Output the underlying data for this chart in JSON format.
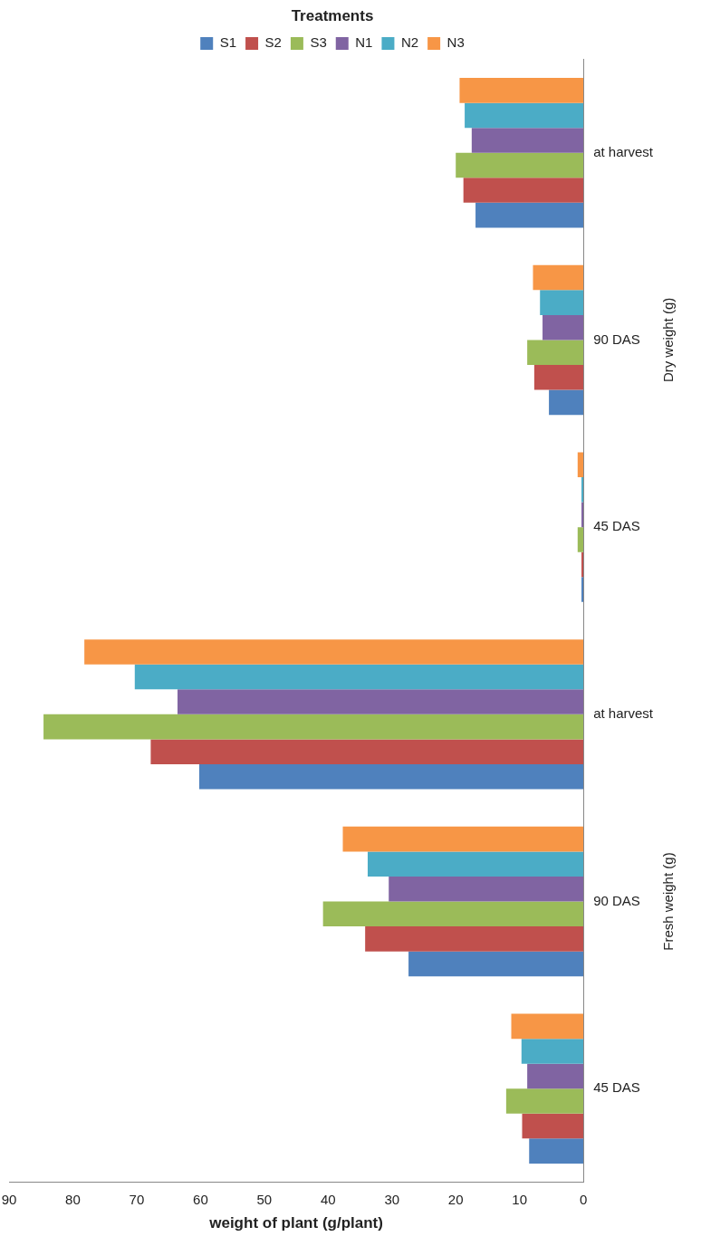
{
  "chart_data": {
    "type": "bar",
    "orientation": "horizontal",
    "xlabel": "weight of plant (g/plant)",
    "legend_title": "Treatments",
    "legend": "top",
    "categories": [
      "at harvest",
      "90 DAS",
      "45 DAS",
      "at harvest",
      "90 DAS",
      "45 DAS"
    ],
    "annotations": [
      "Dry weight (g)",
      "Fresh weight (g)"
    ],
    "xlim": [
      90,
      0
    ],
    "xticks": [
      0,
      10,
      20,
      30,
      40,
      50,
      60,
      70,
      80,
      90
    ],
    "grid": false,
    "series": [
      {
        "name": "S1",
        "color": "#4f81bd",
        "values": [
          16.9,
          5.4,
          0.3,
          60.2,
          27.4,
          8.5
        ]
      },
      {
        "name": "S2",
        "color": "#c0504d",
        "values": [
          18.8,
          7.7,
          0.3,
          67.8,
          34.2,
          9.6
        ]
      },
      {
        "name": "S3",
        "color": "#9bbb59",
        "values": [
          20.0,
          8.8,
          0.9,
          84.6,
          40.8,
          12.1
        ]
      },
      {
        "name": "N1",
        "color": "#8064a2",
        "values": [
          17.5,
          6.4,
          0.3,
          63.6,
          30.5,
          8.8
        ]
      },
      {
        "name": "N2",
        "color": "#4bacc6",
        "values": [
          18.6,
          6.8,
          0.3,
          70.3,
          33.8,
          9.7
        ]
      },
      {
        "name": "N3",
        "color": "#f79646",
        "values": [
          19.4,
          7.9,
          0.9,
          78.2,
          37.7,
          11.3
        ]
      }
    ]
  }
}
